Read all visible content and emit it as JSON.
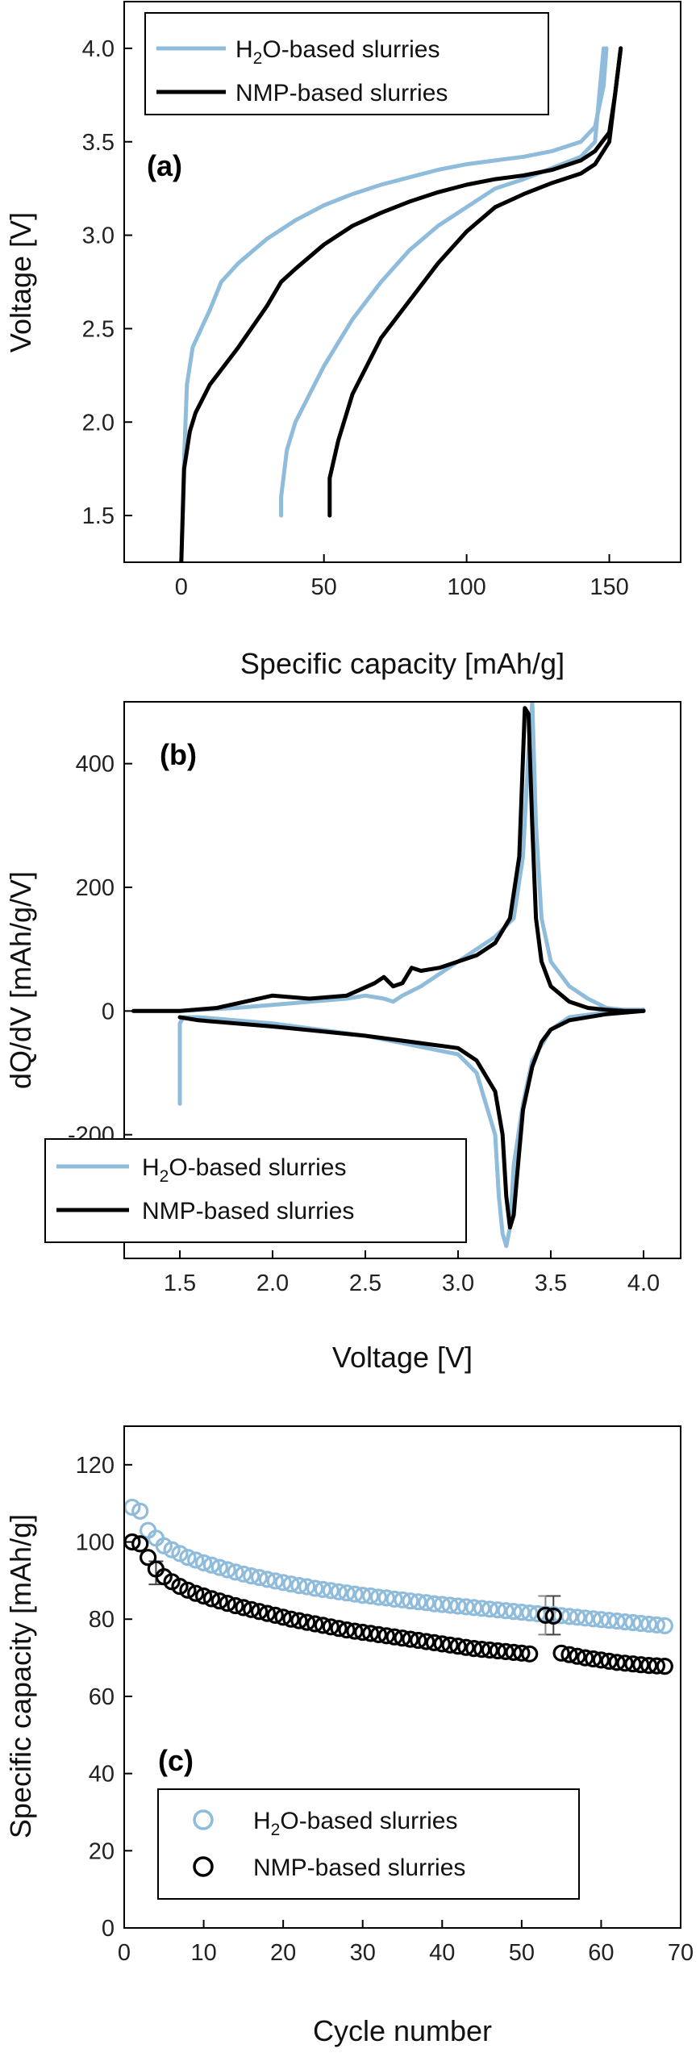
{
  "colors": {
    "h2o": "#8fbcdb",
    "nmp": "#000000"
  },
  "chart_data": [
    {
      "id": "a",
      "type": "line",
      "panel_label": "(a)",
      "xlabel": "Specific capacity [mAh/g]",
      "ylabel": "Voltage [V]",
      "xlim": [
        -20,
        175
      ],
      "ylim": [
        1.25,
        4.25
      ],
      "xticks": [
        0,
        50,
        100,
        150
      ],
      "yticks": [
        1.5,
        2.0,
        2.5,
        3.0,
        3.5,
        4.0
      ],
      "xtick_labels": [
        "0",
        "50",
        "100",
        "150"
      ],
      "ytick_labels": [
        "1.5",
        "2.0",
        "2.5",
        "3.0",
        "3.5",
        "4.0"
      ],
      "legend": {
        "h2o": "O-based slurries",
        "nmp": "NMP-based slurries",
        "h2o_prefix": "H",
        "h2o_sub": "2"
      },
      "series": [
        {
          "name": "H2O-based slurries (charge)",
          "key": "h2o",
          "x": [
            0,
            1,
            2,
            4,
            7,
            10,
            14,
            20,
            30,
            40,
            50,
            60,
            70,
            80,
            90,
            100,
            110,
            120,
            130,
            140,
            145,
            148,
            149
          ],
          "y": [
            1.25,
            1.8,
            2.2,
            2.4,
            2.5,
            2.6,
            2.75,
            2.85,
            2.98,
            3.08,
            3.16,
            3.22,
            3.27,
            3.31,
            3.35,
            3.38,
            3.4,
            3.42,
            3.45,
            3.5,
            3.58,
            3.8,
            4.0
          ]
        },
        {
          "name": "H2O-based slurries (discharge)",
          "key": "h2o",
          "x": [
            148,
            145,
            140,
            130,
            120,
            110,
            100,
            90,
            80,
            70,
            60,
            50,
            45,
            40,
            37,
            35,
            35
          ],
          "y": [
            4.0,
            3.5,
            3.42,
            3.36,
            3.3,
            3.25,
            3.15,
            3.05,
            2.92,
            2.75,
            2.55,
            2.3,
            2.15,
            2.0,
            1.85,
            1.6,
            1.5
          ]
        },
        {
          "name": "NMP-based slurries (charge)",
          "key": "nmp",
          "x": [
            0,
            1,
            3,
            5,
            10,
            20,
            30,
            35,
            40,
            50,
            60,
            70,
            80,
            90,
            100,
            110,
            120,
            130,
            140,
            145,
            150,
            152,
            154
          ],
          "y": [
            1.25,
            1.75,
            1.95,
            2.05,
            2.2,
            2.4,
            2.62,
            2.75,
            2.82,
            2.95,
            3.05,
            3.12,
            3.18,
            3.23,
            3.27,
            3.3,
            3.32,
            3.35,
            3.4,
            3.45,
            3.55,
            3.75,
            4.0
          ]
        },
        {
          "name": "NMP-based slurries (discharge)",
          "key": "nmp",
          "x": [
            154,
            152,
            150,
            145,
            140,
            130,
            120,
            110,
            100,
            90,
            80,
            70,
            60,
            55,
            52,
            52
          ],
          "y": [
            4.0,
            3.75,
            3.5,
            3.38,
            3.33,
            3.28,
            3.22,
            3.15,
            3.02,
            2.85,
            2.65,
            2.45,
            2.15,
            1.9,
            1.7,
            1.5
          ]
        }
      ]
    },
    {
      "id": "b",
      "type": "line",
      "panel_label": "(b)",
      "xlabel": "Voltage [V]",
      "ylabel": "dQ/dV [mAh/g/V]",
      "xlim": [
        1.2,
        4.2
      ],
      "ylim": [
        -400,
        500
      ],
      "xticks": [
        1.5,
        2.0,
        2.5,
        3.0,
        3.5,
        4.0
      ],
      "yticks": [
        -200,
        0,
        200,
        400
      ],
      "xtick_labels": [
        "1.5",
        "2.0",
        "2.5",
        "3.0",
        "3.5",
        "4.0"
      ],
      "ytick_labels": [
        "-200",
        "0",
        "200",
        "400"
      ],
      "legend": {
        "h2o": "O-based slurries",
        "nmp": "NMP-based slurries",
        "h2o_prefix": "H",
        "h2o_sub": "2"
      },
      "series": [
        {
          "name": "H2O-based slurries (charge)",
          "key": "h2o",
          "x": [
            1.25,
            1.5,
            1.8,
            2.0,
            2.2,
            2.4,
            2.5,
            2.6,
            2.65,
            2.7,
            2.8,
            2.9,
            3.0,
            3.1,
            3.2,
            3.3,
            3.35,
            3.38,
            3.4,
            3.42,
            3.45,
            3.5,
            3.6,
            3.7,
            3.8,
            3.9,
            4.0
          ],
          "y": [
            0,
            0,
            5,
            10,
            15,
            20,
            25,
            20,
            15,
            25,
            40,
            60,
            80,
            100,
            120,
            150,
            250,
            420,
            500,
            300,
            150,
            80,
            40,
            20,
            5,
            2,
            2
          ]
        },
        {
          "name": "H2O-based slurries (discharge)",
          "key": "h2o",
          "x": [
            4.0,
            3.8,
            3.6,
            3.5,
            3.4,
            3.35,
            3.3,
            3.28,
            3.26,
            3.24,
            3.22,
            3.2,
            3.1,
            3.0,
            2.5,
            2.0,
            1.6,
            1.52,
            1.5,
            1.5,
            1.5
          ],
          "y": [
            2,
            -2,
            -10,
            -30,
            -80,
            -150,
            -250,
            -350,
            -380,
            -360,
            -300,
            -200,
            -100,
            -70,
            -40,
            -20,
            -10,
            -10,
            -20,
            -80,
            -150
          ]
        },
        {
          "name": "NMP-based slurries (charge)",
          "key": "nmp",
          "x": [
            1.25,
            1.5,
            1.7,
            1.85,
            2.0,
            2.2,
            2.4,
            2.55,
            2.6,
            2.65,
            2.7,
            2.75,
            2.8,
            2.9,
            3.0,
            3.1,
            3.2,
            3.28,
            3.33,
            3.36,
            3.38,
            3.4,
            3.42,
            3.45,
            3.5,
            3.6,
            3.7,
            3.8,
            3.9,
            4.0
          ],
          "y": [
            0,
            0,
            5,
            15,
            25,
            20,
            25,
            45,
            55,
            40,
            45,
            70,
            65,
            70,
            80,
            90,
            110,
            150,
            250,
            490,
            480,
            300,
            150,
            80,
            40,
            15,
            5,
            2,
            0,
            0
          ]
        },
        {
          "name": "NMP-based slurries (discharge)",
          "key": "nmp",
          "x": [
            4.0,
            3.8,
            3.6,
            3.5,
            3.45,
            3.4,
            3.35,
            3.32,
            3.3,
            3.28,
            3.26,
            3.24,
            3.2,
            3.1,
            3.0,
            2.5,
            2.0,
            1.6,
            1.5
          ],
          "y": [
            0,
            -5,
            -15,
            -30,
            -50,
            -90,
            -160,
            -260,
            -330,
            -350,
            -300,
            -200,
            -130,
            -80,
            -60,
            -40,
            -25,
            -15,
            -10
          ]
        }
      ]
    },
    {
      "id": "c",
      "type": "scatter",
      "panel_label": "(c)",
      "xlabel": "Cycle number",
      "ylabel": "Specific capacity [mAh/g]",
      "xlim": [
        0,
        70
      ],
      "ylim": [
        0,
        130
      ],
      "xticks": [
        0,
        10,
        20,
        30,
        40,
        50,
        60,
        70
      ],
      "yticks": [
        0,
        20,
        40,
        60,
        80,
        100,
        120
      ],
      "xtick_labels": [
        "0",
        "10",
        "20",
        "30",
        "40",
        "50",
        "60",
        "70"
      ],
      "ytick_labels": [
        "0",
        "20",
        "40",
        "60",
        "80",
        "100",
        "120"
      ],
      "legend": {
        "h2o": "O-based slurries",
        "nmp": "NMP-based slurries",
        "h2o_prefix": "H",
        "h2o_sub": "2"
      },
      "errorbars": [
        {
          "key": "nmp",
          "x": 4,
          "y": 92,
          "err": 3
        },
        {
          "key": "h2o",
          "x": 53,
          "y": 81,
          "err": 5
        },
        {
          "key": "nmp",
          "x": 54,
          "y": 81,
          "err": 5
        }
      ],
      "series": [
        {
          "name": "H2O-based slurries",
          "key": "h2o",
          "x": [
            1,
            2,
            3,
            4,
            5,
            6,
            7,
            8,
            9,
            10,
            11,
            12,
            13,
            14,
            15,
            16,
            17,
            18,
            19,
            20,
            21,
            22,
            23,
            24,
            25,
            26,
            27,
            28,
            29,
            30,
            31,
            32,
            33,
            34,
            35,
            36,
            37,
            38,
            39,
            40,
            41,
            42,
            43,
            44,
            45,
            46,
            47,
            48,
            49,
            50,
            51,
            52,
            53,
            54,
            55,
            56,
            57,
            58,
            59,
            60,
            61,
            62,
            63,
            64,
            65,
            66,
            67,
            68
          ],
          "y": [
            109,
            108,
            103,
            101,
            99,
            98,
            97,
            96,
            95.3,
            94.6,
            94,
            93.4,
            92.8,
            92.2,
            91.7,
            91.2,
            90.8,
            90.3,
            89.9,
            89.5,
            89.1,
            88.7,
            88.4,
            88,
            87.7,
            87.4,
            87.1,
            86.8,
            86.5,
            86.2,
            86,
            85.7,
            85.5,
            85.2,
            85,
            84.7,
            84.5,
            84.3,
            84,
            83.8,
            83.6,
            83.4,
            83.2,
            83,
            82.8,
            82.6,
            82.4,
            82.2,
            82,
            81.8,
            81.6,
            81.4,
            81.3,
            81.2,
            80.9,
            80.7,
            80.5,
            80.3,
            80.1,
            79.9,
            79.7,
            79.5,
            79.3,
            79.1,
            78.9,
            78.7,
            78.5,
            78.3
          ]
        },
        {
          "name": "NMP-based slurries",
          "key": "nmp",
          "x": [
            1,
            2,
            3,
            4,
            5,
            6,
            7,
            8,
            9,
            10,
            11,
            12,
            13,
            14,
            15,
            16,
            17,
            18,
            19,
            20,
            21,
            22,
            23,
            24,
            25,
            26,
            27,
            28,
            29,
            30,
            31,
            32,
            33,
            34,
            35,
            36,
            37,
            38,
            39,
            40,
            41,
            42,
            43,
            44,
            45,
            46,
            47,
            48,
            49,
            50,
            51,
            53,
            54,
            55,
            56,
            57,
            58,
            59,
            60,
            61,
            62,
            63,
            64,
            65,
            66,
            67,
            68
          ],
          "y": [
            100,
            99.5,
            96,
            93,
            91,
            89.7,
            88.5,
            87.5,
            86.7,
            86,
            85.3,
            84.7,
            84.1,
            83.5,
            83,
            82.5,
            82,
            81.5,
            81,
            80.5,
            80,
            79.6,
            79.2,
            78.8,
            78.4,
            78,
            77.6,
            77.2,
            76.9,
            76.6,
            76.3,
            76,
            75.7,
            75.4,
            75.1,
            74.8,
            74.5,
            74.2,
            73.9,
            73.6,
            73.3,
            73,
            72.7,
            72.4,
            72.2,
            72,
            71.8,
            71.6,
            71.4,
            71.2,
            71,
            81,
            80.8,
            71.2,
            70.8,
            70.4,
            70,
            69.7,
            69.4,
            69.1,
            68.8,
            68.6,
            68.4,
            68.2,
            68,
            67.9,
            67.8
          ]
        }
      ]
    }
  ]
}
